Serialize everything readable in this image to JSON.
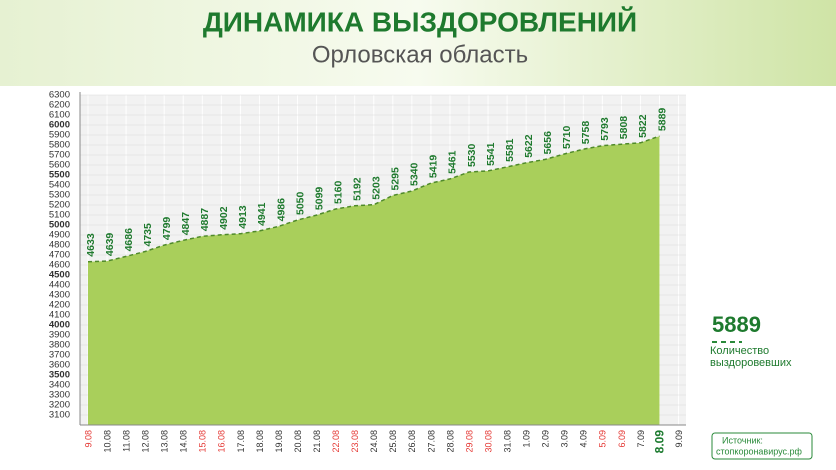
{
  "chart_data": {
    "type": "area",
    "title": "ДИНАМИКА ВЫЗДОРОВЛЕНИЙ",
    "subtitle": "Орловская область",
    "categories": [
      "9.08",
      "10.08",
      "11.08",
      "12.08",
      "13.08",
      "14.08",
      "15.08",
      "16.08",
      "17.08",
      "18.08",
      "19.08",
      "20.08",
      "21.08",
      "22.08",
      "23.08",
      "24.08",
      "25.08",
      "26.08",
      "27.08",
      "28.08",
      "29.08",
      "30.08",
      "31.08",
      "1.09",
      "2.09",
      "3.09",
      "4.09",
      "5.09",
      "6.09",
      "7.09",
      "8.09",
      "9.09"
    ],
    "values": [
      4633,
      4639,
      4686,
      4735,
      4799,
      4847,
      4887,
      4902,
      4913,
      4941,
      4986,
      5050,
      5099,
      5160,
      5192,
      5203,
      5295,
      5340,
      5419,
      5461,
      5530,
      5541,
      5581,
      5622,
      5656,
      5710,
      5758,
      5793,
      5808,
      5822,
      5889,
      null
    ],
    "category_colors": [
      "#e53935",
      "#333333",
      "#333333",
      "#333333",
      "#333333",
      "#333333",
      "#e53935",
      "#e53935",
      "#333333",
      "#333333",
      "#333333",
      "#333333",
      "#333333",
      "#e53935",
      "#e53935",
      "#333333",
      "#333333",
      "#333333",
      "#333333",
      "#333333",
      "#e53935",
      "#e53935",
      "#333333",
      "#333333",
      "#333333",
      "#333333",
      "#333333",
      "#e53935",
      "#e53935",
      "#333333",
      "#1b7a2e",
      "#333333"
    ],
    "color": "#a9cf5b",
    "line_color": "#4f8a2a",
    "label_color": "#1f7a2e",
    "ylim": [
      3000,
      6300
    ],
    "yticks": [
      3100,
      3200,
      3300,
      3400,
      3500,
      3600,
      3700,
      3800,
      3900,
      4000,
      4100,
      4200,
      4300,
      4400,
      4500,
      4600,
      4700,
      4800,
      4900,
      5000,
      5100,
      5200,
      5300,
      5400,
      5500,
      5600,
      5700,
      5800,
      5900,
      6000,
      6100,
      6200,
      6300
    ],
    "grid": true,
    "total": 5889,
    "total_label": "Количество выздоровевших",
    "source_label": "Источник:",
    "source": "стопкоронавирус.рф"
  }
}
